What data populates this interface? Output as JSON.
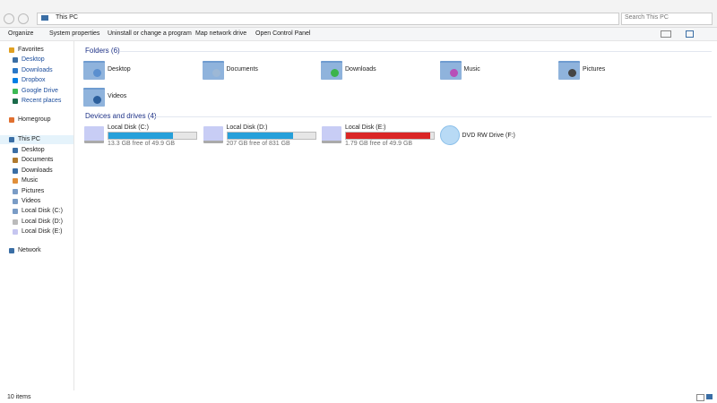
{
  "address": {
    "path": "This PC",
    "search_placeholder": "Search This PC"
  },
  "toolbar": [
    "Organize",
    "System properties",
    "Uninstall or change a program",
    "Map network drive",
    "Open Control Panel"
  ],
  "nav": {
    "favorites": {
      "title": "Favorites",
      "items": [
        "Desktop",
        "Downloads",
        "Dropbox",
        "Google Drive",
        "Recent places"
      ]
    },
    "homegroup": "Homegroup",
    "this_pc": {
      "title": "This PC",
      "items": [
        "Desktop",
        "Documents",
        "Downloads",
        "Music",
        "Pictures",
        "Videos",
        "Local Disk (C:)",
        "Local Disk (D:)",
        "Local Disk (E:)"
      ]
    },
    "network": "Network"
  },
  "folders": {
    "header": "Folders (6)",
    "items": [
      "Desktop",
      "Documents",
      "Downloads",
      "Music",
      "Pictures",
      "Videos"
    ]
  },
  "drives": {
    "header": "Devices and drives (4)",
    "items": [
      {
        "name": "Local Disk (C:)",
        "free": 13.3,
        "total": 49.9,
        "space_label": "13.3 GB free of 49.9 GB",
        "bar_color": "#26a0da"
      },
      {
        "name": "Local Disk (D:)",
        "free": 207,
        "total": 831,
        "space_label": "207 GB free of 831 GB",
        "bar_color": "#26a0da"
      },
      {
        "name": "Local Disk (E:)",
        "free": 1.79,
        "total": 49.9,
        "space_label": "1.79 GB free of 49.9 GB",
        "bar_color": "#da2626"
      },
      {
        "name": "DVD RW Drive (F:)"
      }
    ]
  },
  "status": "10 items"
}
